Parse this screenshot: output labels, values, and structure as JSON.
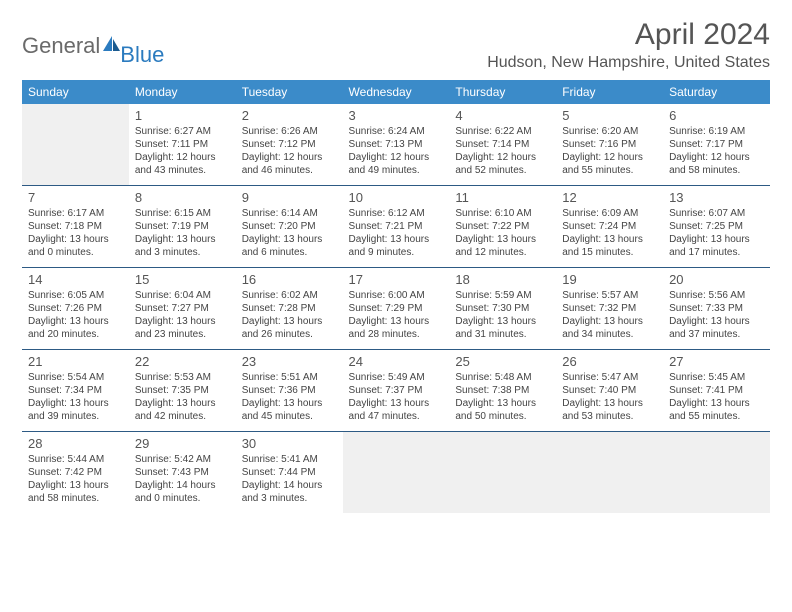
{
  "logo": {
    "text_gray": "General",
    "text_blue": "Blue"
  },
  "title": "April 2024",
  "location": "Hudson, New Hampshire, United States",
  "colors": {
    "header_bg": "#3b8bc9",
    "header_text": "#ffffff",
    "border": "#2d5a84",
    "empty_bg": "#f0f0f0",
    "body_text": "#444444",
    "daynum_text": "#555555",
    "title_text": "#555555",
    "logo_gray": "#6a6a6a",
    "logo_blue": "#2b7bbf"
  },
  "weekdays": [
    "Sunday",
    "Monday",
    "Tuesday",
    "Wednesday",
    "Thursday",
    "Friday",
    "Saturday"
  ],
  "weeks": [
    [
      null,
      {
        "day": "1",
        "sunrise": "6:27 AM",
        "sunset": "7:11 PM",
        "daylight": "12 hours and 43 minutes."
      },
      {
        "day": "2",
        "sunrise": "6:26 AM",
        "sunset": "7:12 PM",
        "daylight": "12 hours and 46 minutes."
      },
      {
        "day": "3",
        "sunrise": "6:24 AM",
        "sunset": "7:13 PM",
        "daylight": "12 hours and 49 minutes."
      },
      {
        "day": "4",
        "sunrise": "6:22 AM",
        "sunset": "7:14 PM",
        "daylight": "12 hours and 52 minutes."
      },
      {
        "day": "5",
        "sunrise": "6:20 AM",
        "sunset": "7:16 PM",
        "daylight": "12 hours and 55 minutes."
      },
      {
        "day": "6",
        "sunrise": "6:19 AM",
        "sunset": "7:17 PM",
        "daylight": "12 hours and 58 minutes."
      }
    ],
    [
      {
        "day": "7",
        "sunrise": "6:17 AM",
        "sunset": "7:18 PM",
        "daylight": "13 hours and 0 minutes."
      },
      {
        "day": "8",
        "sunrise": "6:15 AM",
        "sunset": "7:19 PM",
        "daylight": "13 hours and 3 minutes."
      },
      {
        "day": "9",
        "sunrise": "6:14 AM",
        "sunset": "7:20 PM",
        "daylight": "13 hours and 6 minutes."
      },
      {
        "day": "10",
        "sunrise": "6:12 AM",
        "sunset": "7:21 PM",
        "daylight": "13 hours and 9 minutes."
      },
      {
        "day": "11",
        "sunrise": "6:10 AM",
        "sunset": "7:22 PM",
        "daylight": "13 hours and 12 minutes."
      },
      {
        "day": "12",
        "sunrise": "6:09 AM",
        "sunset": "7:24 PM",
        "daylight": "13 hours and 15 minutes."
      },
      {
        "day": "13",
        "sunrise": "6:07 AM",
        "sunset": "7:25 PM",
        "daylight": "13 hours and 17 minutes."
      }
    ],
    [
      {
        "day": "14",
        "sunrise": "6:05 AM",
        "sunset": "7:26 PM",
        "daylight": "13 hours and 20 minutes."
      },
      {
        "day": "15",
        "sunrise": "6:04 AM",
        "sunset": "7:27 PM",
        "daylight": "13 hours and 23 minutes."
      },
      {
        "day": "16",
        "sunrise": "6:02 AM",
        "sunset": "7:28 PM",
        "daylight": "13 hours and 26 minutes."
      },
      {
        "day": "17",
        "sunrise": "6:00 AM",
        "sunset": "7:29 PM",
        "daylight": "13 hours and 28 minutes."
      },
      {
        "day": "18",
        "sunrise": "5:59 AM",
        "sunset": "7:30 PM",
        "daylight": "13 hours and 31 minutes."
      },
      {
        "day": "19",
        "sunrise": "5:57 AM",
        "sunset": "7:32 PM",
        "daylight": "13 hours and 34 minutes."
      },
      {
        "day": "20",
        "sunrise": "5:56 AM",
        "sunset": "7:33 PM",
        "daylight": "13 hours and 37 minutes."
      }
    ],
    [
      {
        "day": "21",
        "sunrise": "5:54 AM",
        "sunset": "7:34 PM",
        "daylight": "13 hours and 39 minutes."
      },
      {
        "day": "22",
        "sunrise": "5:53 AM",
        "sunset": "7:35 PM",
        "daylight": "13 hours and 42 minutes."
      },
      {
        "day": "23",
        "sunrise": "5:51 AM",
        "sunset": "7:36 PM",
        "daylight": "13 hours and 45 minutes."
      },
      {
        "day": "24",
        "sunrise": "5:49 AM",
        "sunset": "7:37 PM",
        "daylight": "13 hours and 47 minutes."
      },
      {
        "day": "25",
        "sunrise": "5:48 AM",
        "sunset": "7:38 PM",
        "daylight": "13 hours and 50 minutes."
      },
      {
        "day": "26",
        "sunrise": "5:47 AM",
        "sunset": "7:40 PM",
        "daylight": "13 hours and 53 minutes."
      },
      {
        "day": "27",
        "sunrise": "5:45 AM",
        "sunset": "7:41 PM",
        "daylight": "13 hours and 55 minutes."
      }
    ],
    [
      {
        "day": "28",
        "sunrise": "5:44 AM",
        "sunset": "7:42 PM",
        "daylight": "13 hours and 58 minutes."
      },
      {
        "day": "29",
        "sunrise": "5:42 AM",
        "sunset": "7:43 PM",
        "daylight": "14 hours and 0 minutes."
      },
      {
        "day": "30",
        "sunrise": "5:41 AM",
        "sunset": "7:44 PM",
        "daylight": "14 hours and 3 minutes."
      },
      null,
      null,
      null,
      null
    ]
  ],
  "labels": {
    "sunrise": "Sunrise:",
    "sunset": "Sunset:",
    "daylight": "Daylight:"
  }
}
